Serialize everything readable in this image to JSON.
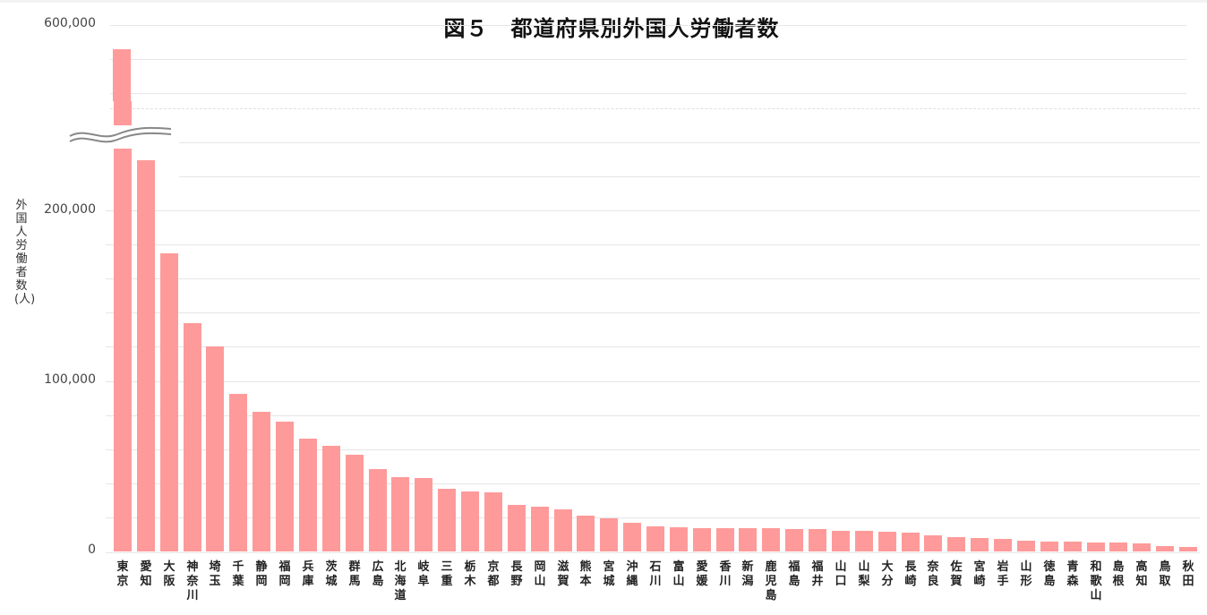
{
  "chart_data": {
    "type": "bar",
    "title": "図５　都道府県別外国人労働者数",
    "xlabel": "",
    "ylabel": "外国人労働者数(人)",
    "axis_break": {
      "lower_range": [
        0,
        240000
      ],
      "upper_range": [
        500000,
        600000
      ],
      "symbol": "double-wavy-line"
    },
    "y_ticks": {
      "lower": [
        "0",
        "100,000",
        "200,000"
      ],
      "upper": [
        "600,000"
      ]
    },
    "gridlines": true,
    "grid_step": 20000,
    "bar_color": "#ff9a9a",
    "legend": null,
    "categories": [
      "東京",
      "愛知",
      "大阪",
      "神奈川",
      "埼玉",
      "千葉",
      "静岡",
      "福岡",
      "兵庫",
      "茨城",
      "群馬",
      "広島",
      "北海道",
      "岐阜",
      "三重",
      "栃木",
      "京都",
      "長野",
      "岡山",
      "滋賀",
      "熊本",
      "宮城",
      "沖縄",
      "石川",
      "富山",
      "愛媛",
      "香川",
      "新潟",
      "鹿児島",
      "福島",
      "福井",
      "山口",
      "山梨",
      "大分",
      "長崎",
      "奈良",
      "佐賀",
      "宮崎",
      "岩手",
      "山形",
      "徳島",
      "青森",
      "和歌山",
      "島根",
      "高知",
      "鳥取",
      "秋田"
    ],
    "values": [
      585800,
      229400,
      174800,
      133900,
      120200,
      92400,
      81900,
      76100,
      66100,
      61900,
      56700,
      48300,
      43600,
      43000,
      36700,
      35200,
      34600,
      27300,
      26200,
      24700,
      21000,
      19400,
      16800,
      14700,
      14200,
      13900,
      13900,
      13900,
      13600,
      13100,
      13100,
      12300,
      12100,
      11500,
      10800,
      9400,
      8400,
      7900,
      7300,
      6300,
      5800,
      5800,
      5200,
      5200,
      4700,
      3100,
      2600
    ]
  },
  "labels": {
    "title": "図５　都道府県別外国人労働者数",
    "ylabel": "外国人労働者数(人)",
    "tick_600k": "600,000",
    "tick_200k": "200,000",
    "tick_100k": "100,000",
    "tick_0": "0"
  }
}
